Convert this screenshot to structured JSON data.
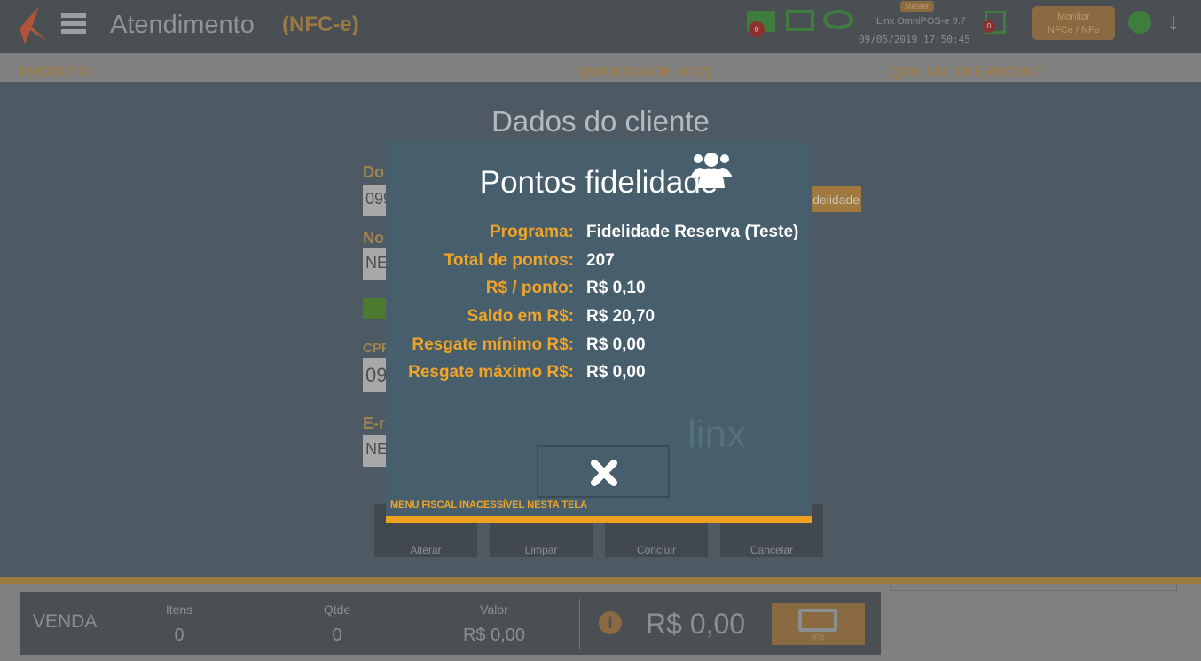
{
  "header": {
    "title": "Atendimento",
    "subtitle": "(NFC-e)",
    "badge_master": "Master",
    "app_version": "Linx OmniPOS-e  9.7",
    "datetime": "09/05/2019 17:50:45",
    "cart_count": "0",
    "doc_count": "0",
    "monitor_button": "Monitor\nNFCe / NFe"
  },
  "columns": {
    "produto": "PRODUTO",
    "quantidade": "QUANTIDADE (F12)",
    "oferecer": "QUE TAL OFERECER?"
  },
  "form": {
    "title": "Dados do cliente",
    "label_doc": "Do",
    "input_doc": "099",
    "label_nome": "No",
    "input_nome": "NE",
    "label_cpf": "CPF",
    "input_cpf": "09",
    "label_email": "E-r",
    "input_email": "NE",
    "fidelidade_button": "delidade"
  },
  "actions": {
    "alterar": "Alterar",
    "limpar": "Limpar",
    "concluir": "Concluir",
    "cancelar": "Cancelar"
  },
  "modal": {
    "title": "Pontos fidelidade",
    "rows": [
      {
        "label": "Programa:",
        "value": "Fidelidade Reserva (Teste)"
      },
      {
        "label": "Total de pontos:",
        "value": "207"
      },
      {
        "label": "R$ / ponto:",
        "value": "R$ 0,10"
      },
      {
        "label": "Saldo em R$:",
        "value": "R$ 20,70"
      },
      {
        "label": "Resgate mínimo R$:",
        "value": "R$ 0,00"
      },
      {
        "label": "Resgate máximo R$:",
        "value": "R$ 0,00"
      }
    ],
    "watermark": "linx",
    "status": "MENU FISCAL INACESSÍVEL NESTA TELA"
  },
  "footer": {
    "venda": "VENDA",
    "itens_label": "Itens",
    "itens": "0",
    "qtde_label": "Qtde",
    "qtde": "0",
    "valor_label": "Valor",
    "valor": "R$ 0,00",
    "total": "R$ 0,00",
    "pay_key": "(F3)"
  },
  "colors": {
    "accent": "#f0a428",
    "modal_bg": "#475f6c"
  }
}
